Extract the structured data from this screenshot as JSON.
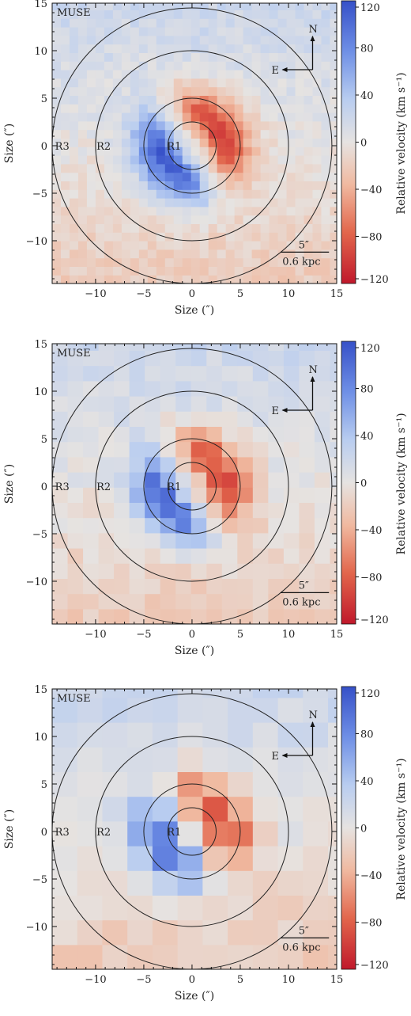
{
  "chart_data": [
    {
      "type": "heatmap",
      "panel": "top",
      "label_instrument": "MUSE",
      "xlabel": "Size (″)",
      "ylabel": "Size (″)",
      "xlim": [
        -14.5,
        15
      ],
      "ylim": [
        -14.5,
        15
      ],
      "xticks": [
        -10,
        -5,
        0,
        5,
        10,
        15
      ],
      "yticks": [
        15,
        10,
        5,
        0,
        -5,
        -10
      ],
      "rings": [
        {
          "name": "R1",
          "radius": 2.5
        },
        {
          "name": "R1",
          "radius": 5
        },
        {
          "name": "R2",
          "radius": 10
        },
        {
          "name": "R3",
          "radius": 14.5
        }
      ],
      "ring_labels": [
        "R1",
        "R2",
        "R3"
      ],
      "compass": {
        "north": "N",
        "east": "E"
      },
      "scalebar": {
        "top": "5″",
        "bottom": "0.6 kpc"
      },
      "colorbar": {
        "label": "Relative velocity (km s⁻¹)",
        "ticks": [
          120,
          80,
          40,
          0,
          -40,
          -80,
          -120
        ],
        "range": [
          -120,
          120
        ]
      },
      "velocity_field": {
        "peak_redshift_kms": -100,
        "peak_blueshift_kms": 110,
        "pixel_scale": "fine"
      }
    },
    {
      "type": "heatmap",
      "panel": "middle",
      "label_instrument": "MUSE",
      "xlabel": "Size (″)",
      "ylabel": "Size (″)",
      "xlim": [
        -14.5,
        15
      ],
      "ylim": [
        -14.5,
        15
      ],
      "xticks": [
        -10,
        -5,
        0,
        5,
        10,
        15
      ],
      "yticks": [
        15,
        10,
        5,
        0,
        -5,
        -10
      ],
      "rings": [
        {
          "name": "R1",
          "radius": 2.5
        },
        {
          "name": "R1",
          "radius": 5
        },
        {
          "name": "R2",
          "radius": 10
        },
        {
          "name": "R3",
          "radius": 14.5
        }
      ],
      "ring_labels": [
        "R1",
        "R2",
        "R3"
      ],
      "compass": {
        "north": "N",
        "east": "E"
      },
      "scalebar": {
        "top": "5″",
        "bottom": "0.6 kpc"
      },
      "colorbar": {
        "label": "Relative velocity (km s⁻¹)",
        "ticks": [
          120,
          80,
          40,
          0,
          -40,
          -80,
          -120
        ],
        "range": [
          -120,
          120
        ]
      },
      "velocity_field": {
        "peak_redshift_kms": -95,
        "peak_blueshift_kms": 100,
        "pixel_scale": "medium"
      }
    },
    {
      "type": "heatmap",
      "panel": "bottom",
      "label_instrument": "MUSE",
      "xlabel": "Size (″)",
      "ylabel": "Size (″)",
      "xlim": [
        -14.5,
        15
      ],
      "ylim": [
        -14.5,
        15
      ],
      "xticks": [
        -10,
        -5,
        0,
        5,
        10,
        15
      ],
      "yticks": [
        15,
        10,
        5,
        0,
        -5,
        -10
      ],
      "rings": [
        {
          "name": "R1",
          "radius": 2.5
        },
        {
          "name": "R1",
          "radius": 5
        },
        {
          "name": "R2",
          "radius": 10
        },
        {
          "name": "R3",
          "radius": 14.5
        }
      ],
      "ring_labels": [
        "R1",
        "R2",
        "R3"
      ],
      "compass": {
        "north": "N",
        "east": "E"
      },
      "scalebar": {
        "top": "5″",
        "bottom": "0.6 kpc"
      },
      "colorbar": {
        "label": "Relative velocity (km s⁻¹)",
        "ticks": [
          120,
          80,
          40,
          0,
          -40,
          -80,
          -120
        ],
        "range": [
          -120,
          120
        ]
      },
      "velocity_field": {
        "peak_redshift_kms": -95,
        "peak_blueshift_kms": 95,
        "pixel_scale": "coarse"
      }
    }
  ]
}
